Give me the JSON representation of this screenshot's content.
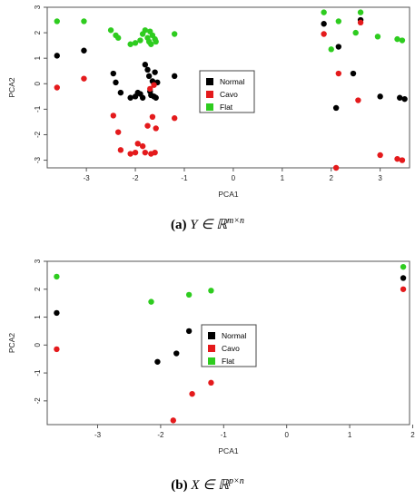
{
  "chart_data": [
    {
      "type": "scatter",
      "xlabel": "PCA1",
      "ylabel": "PCA2",
      "xlim": [
        -3.8,
        3.6
      ],
      "ylim": [
        -3.3,
        3.0
      ],
      "xticks": [
        -3,
        -2,
        -1,
        0,
        1,
        2,
        3
      ],
      "yticks": [
        -3,
        -2,
        -1,
        0,
        1,
        2,
        3
      ],
      "legend_position": "center",
      "series": [
        {
          "name": "Normal",
          "color": "#000000",
          "points": [
            [
              -3.6,
              1.1
            ],
            [
              -3.05,
              1.3
            ],
            [
              -2.45,
              0.4
            ],
            [
              -2.4,
              0.05
            ],
            [
              -2.3,
              -0.35
            ],
            [
              -2.1,
              -0.55
            ],
            [
              -2.0,
              -0.5
            ],
            [
              -1.95,
              -0.35
            ],
            [
              -1.9,
              -0.4
            ],
            [
              -1.85,
              -0.55
            ],
            [
              -1.8,
              0.75
            ],
            [
              -1.75,
              0.55
            ],
            [
              -1.72,
              0.3
            ],
            [
              -1.7,
              -0.3
            ],
            [
              -1.68,
              -0.45
            ],
            [
              -1.65,
              0.1
            ],
            [
              -1.62,
              -0.5
            ],
            [
              -1.6,
              0.45
            ],
            [
              -1.58,
              -0.55
            ],
            [
              -1.55,
              0.05
            ],
            [
              -1.2,
              0.3
            ],
            [
              1.85,
              2.35
            ],
            [
              2.15,
              1.45
            ],
            [
              2.45,
              0.4
            ],
            [
              2.6,
              2.5
            ],
            [
              2.1,
              -0.95
            ],
            [
              3.0,
              -0.5
            ],
            [
              3.4,
              -0.55
            ],
            [
              3.5,
              -0.6
            ]
          ]
        },
        {
          "name": "Cavo",
          "color": "#e41a1c",
          "points": [
            [
              -3.6,
              -0.15
            ],
            [
              -3.05,
              0.2
            ],
            [
              -2.45,
              -1.25
            ],
            [
              -2.35,
              -1.9
            ],
            [
              -2.3,
              -2.6
            ],
            [
              -2.1,
              -2.75
            ],
            [
              -2.0,
              -2.7
            ],
            [
              -1.95,
              -2.35
            ],
            [
              -1.85,
              -2.45
            ],
            [
              -1.8,
              -2.7
            ],
            [
              -1.75,
              -1.65
            ],
            [
              -1.7,
              -0.2
            ],
            [
              -1.68,
              -2.75
            ],
            [
              -1.65,
              -1.3
            ],
            [
              -1.62,
              -0.05
            ],
            [
              -1.6,
              -2.7
            ],
            [
              -1.58,
              -1.75
            ],
            [
              -1.2,
              -1.35
            ],
            [
              1.85,
              1.95
            ],
            [
              2.1,
              -3.3
            ],
            [
              2.15,
              0.4
            ],
            [
              2.6,
              2.4
            ],
            [
              3.0,
              -2.8
            ],
            [
              3.35,
              -2.95
            ],
            [
              3.45,
              -3.0
            ],
            [
              2.55,
              -0.65
            ]
          ]
        },
        {
          "name": "Flat",
          "color": "#2ecc1f",
          "points": [
            [
              -3.6,
              2.45
            ],
            [
              -3.05,
              2.45
            ],
            [
              -2.5,
              2.1
            ],
            [
              -2.4,
              1.9
            ],
            [
              -2.35,
              1.8
            ],
            [
              -2.1,
              1.55
            ],
            [
              -2.0,
              1.6
            ],
            [
              -1.9,
              1.7
            ],
            [
              -1.85,
              1.95
            ],
            [
              -1.8,
              2.1
            ],
            [
              -1.75,
              1.8
            ],
            [
              -1.72,
              1.65
            ],
            [
              -1.7,
              2.05
            ],
            [
              -1.68,
              1.55
            ],
            [
              -1.65,
              1.9
            ],
            [
              -1.6,
              1.75
            ],
            [
              -1.58,
              1.65
            ],
            [
              -1.2,
              1.95
            ],
            [
              1.85,
              2.8
            ],
            [
              2.0,
              1.35
            ],
            [
              2.15,
              2.45
            ],
            [
              2.5,
              2.0
            ],
            [
              2.6,
              2.8
            ],
            [
              2.95,
              1.85
            ],
            [
              3.35,
              1.75
            ],
            [
              3.45,
              1.7
            ]
          ]
        }
      ]
    },
    {
      "type": "scatter",
      "xlabel": "PCA1",
      "ylabel": "PCA2",
      "xlim": [
        -3.8,
        1.95
      ],
      "ylim": [
        -2.85,
        3.0
      ],
      "xticks": [
        -3,
        -2,
        -1,
        0,
        1,
        2
      ],
      "yticks": [
        -2,
        -1,
        0,
        1,
        2,
        3
      ],
      "legend_position": "center",
      "series": [
        {
          "name": "Normal",
          "color": "#000000",
          "points": [
            [
              -3.65,
              1.15
            ],
            [
              -2.05,
              -0.6
            ],
            [
              -1.75,
              -0.3
            ],
            [
              -1.55,
              0.5
            ],
            [
              1.85,
              2.4
            ]
          ]
        },
        {
          "name": "Cavo",
          "color": "#e41a1c",
          "points": [
            [
              -3.65,
              -0.15
            ],
            [
              -1.8,
              -2.7
            ],
            [
              -1.5,
              -1.75
            ],
            [
              -1.2,
              -1.35
            ],
            [
              1.85,
              2.0
            ]
          ]
        },
        {
          "name": "Flat",
          "color": "#2ecc1f",
          "points": [
            [
              -3.65,
              2.45
            ],
            [
              -2.15,
              1.55
            ],
            [
              -1.55,
              1.8
            ],
            [
              -1.2,
              1.95
            ],
            [
              1.85,
              2.8
            ]
          ]
        }
      ]
    }
  ],
  "captions": [
    {
      "label": "(a)",
      "math": "Y ∈ ℝ",
      "sup": "m×n"
    },
    {
      "label": "(b)",
      "math": "X ∈ ℝ",
      "sup": "p×n"
    }
  ]
}
